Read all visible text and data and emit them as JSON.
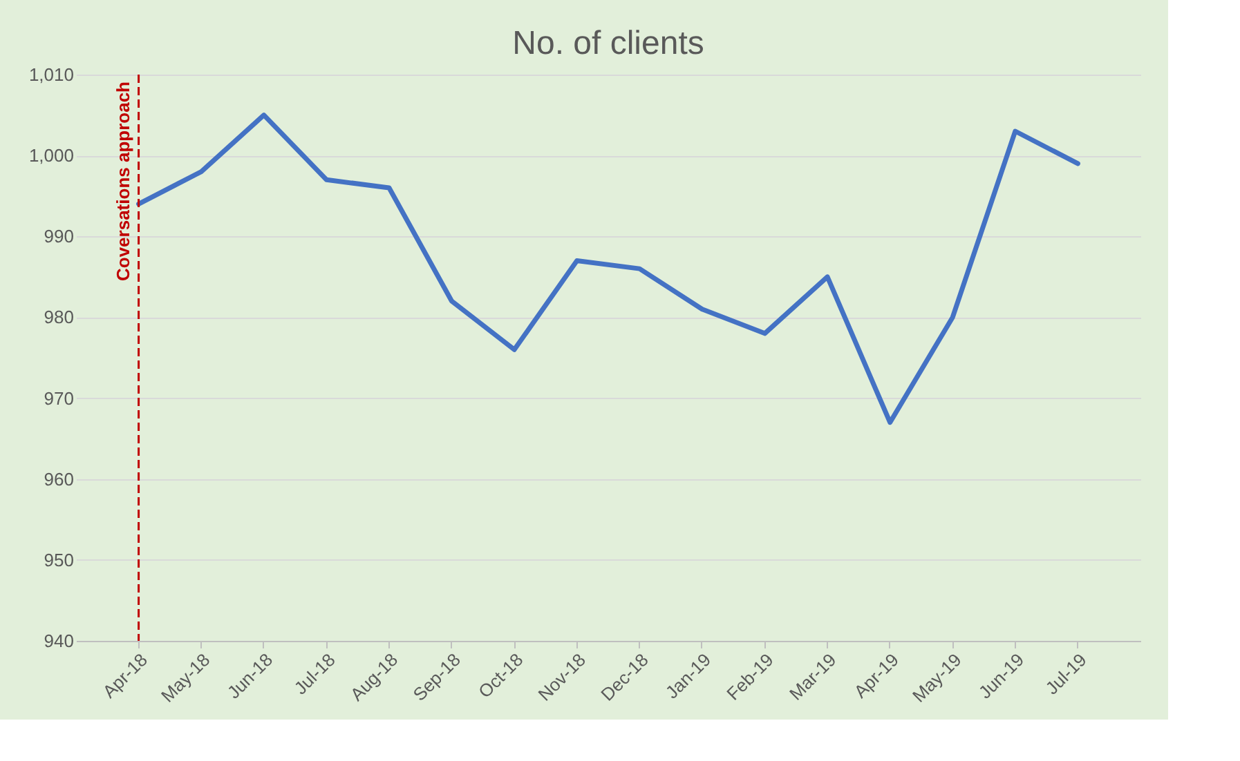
{
  "chart_data": {
    "type": "line",
    "title": "No. of clients",
    "categories": [
      "Apr-18",
      "May-18",
      "Jun-18",
      "Jul-18",
      "Aug-18",
      "Sep-18",
      "Oct-18",
      "Nov-18",
      "Dec-18",
      "Jan-19",
      "Feb-19",
      "Mar-19",
      "Apr-19",
      "May-19",
      "Jun-19",
      "Jul-19"
    ],
    "series": [
      {
        "color": "#4472c4",
        "values": [
          994,
          998,
          1005,
          997,
          996,
          982,
          976,
          987,
          986,
          981,
          978,
          985,
          967,
          980,
          1003,
          999
        ]
      }
    ],
    "ylim": [
      940,
      1010
    ],
    "yticks": [
      940,
      950,
      960,
      970,
      980,
      990,
      {
        "value": 1000,
        "label": "1,000"
      },
      {
        "value": 1010,
        "label": "1,010"
      }
    ],
    "ref_lines": [
      {
        "axis": "x",
        "value": "Apr-18",
        "label": "Coversations approach",
        "color": "#c00000",
        "line_style": "dashed"
      }
    ],
    "grid": "y",
    "marker": "none",
    "line_style": "solid"
  }
}
